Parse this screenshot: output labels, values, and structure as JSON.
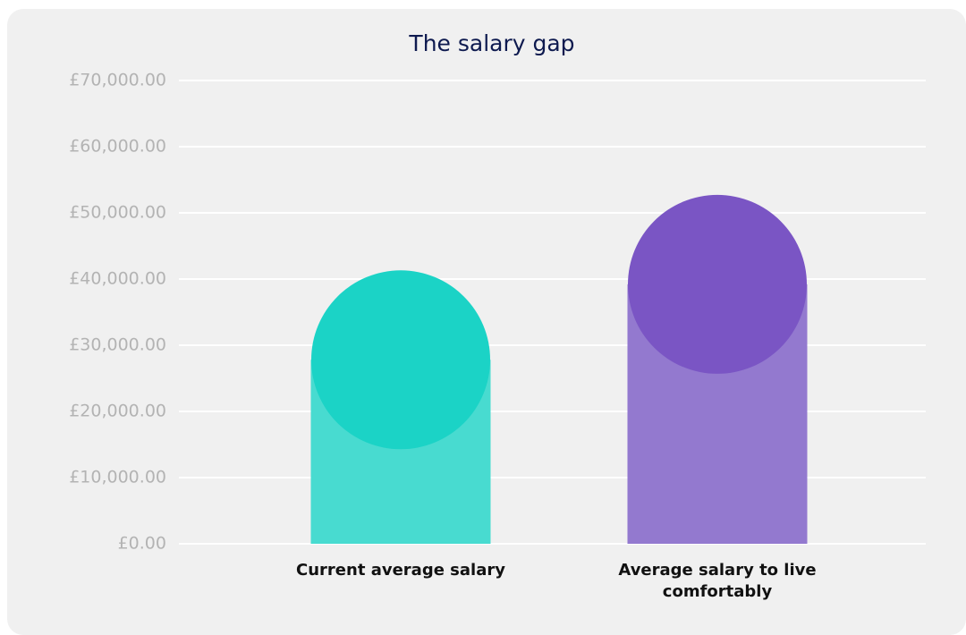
{
  "chart_data": {
    "type": "bar",
    "title": "The salary gap",
    "categories": [
      "Current average salary",
      "Average salary to live comfortably"
    ],
    "values": [
      27800,
      39200
    ],
    "colors": [
      "#48dbd0",
      "#9379cf"
    ],
    "cap_colors": [
      "#1bd3c6",
      "#7a55c4"
    ],
    "ylim": [
      0,
      70000
    ],
    "yticks": [
      {
        "value": 0,
        "label": "£0.00"
      },
      {
        "value": 10000,
        "label": "£10,000.00"
      },
      {
        "value": 20000,
        "label": "£20,000.00"
      },
      {
        "value": 30000,
        "label": "£30,000.00"
      },
      {
        "value": 40000,
        "label": "£40,000.00"
      },
      {
        "value": 50000,
        "label": "£50,000.00"
      },
      {
        "value": 60000,
        "label": "£60,000.00"
      },
      {
        "value": 70000,
        "label": "£70,000.00"
      }
    ],
    "grid": true
  }
}
